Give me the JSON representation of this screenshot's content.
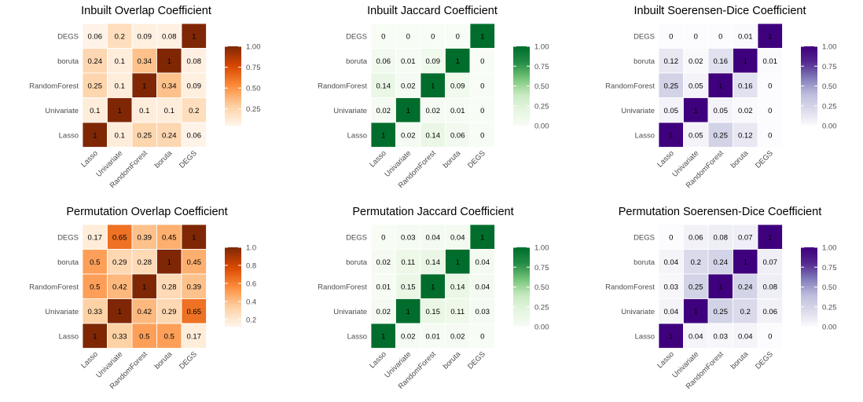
{
  "chart_data": [
    {
      "type": "heatmap",
      "title": "Inbuilt Overlap Coefficient",
      "rows": [
        "DEGS",
        "boruta",
        "RandomForest",
        "Univariate",
        "Lasso"
      ],
      "cols": [
        "Lasso",
        "Univariate",
        "RandomForest",
        "boruta",
        "DEGS"
      ],
      "values": [
        [
          0.06,
          0.2,
          0.09,
          0.08,
          1
        ],
        [
          0.24,
          0.1,
          0.34,
          1,
          0.08
        ],
        [
          0.25,
          0.1,
          1,
          0.34,
          0.09
        ],
        [
          0.1,
          1,
          0.1,
          0.1,
          0.2
        ],
        [
          1,
          0.1,
          0.25,
          0.24,
          0.06
        ]
      ],
      "labels": [
        [
          "0.06",
          "0.2",
          "0.09",
          "0.08",
          "1"
        ],
        [
          "0.24",
          "0.1",
          "0.34",
          "1",
          "0.08"
        ],
        [
          "0.25",
          "0.1",
          "1",
          "0.34",
          "0.09"
        ],
        [
          "0.1",
          "1",
          "0.1",
          "0.1",
          "0.2"
        ],
        [
          "1",
          "0.1",
          "0.25",
          "0.24",
          "0.06"
        ]
      ],
      "colors": [
        "#fff5eb",
        "#fdd0a2",
        "#fd8d3c",
        "#d94801",
        "#7f2704"
      ],
      "scale": [
        0.05,
        1
      ],
      "legend_ticks": [
        "1.00",
        "0.75",
        "0.50",
        "0.25"
      ],
      "legend_tick_values": [
        1,
        0.75,
        0.5,
        0.25
      ]
    },
    {
      "type": "heatmap",
      "title": "Inbuilt Jaccard Coefficient",
      "rows": [
        "DEGS",
        "boruta",
        "RandomForest",
        "Univariate",
        "Lasso"
      ],
      "cols": [
        "Lasso",
        "Univariate",
        "RandomForest",
        "boruta",
        "DEGS"
      ],
      "values": [
        [
          0,
          0,
          0,
          0,
          1
        ],
        [
          0.06,
          0.01,
          0.09,
          1,
          0
        ],
        [
          0.14,
          0.02,
          1,
          0.09,
          0
        ],
        [
          0.02,
          1,
          0.02,
          0.01,
          0
        ],
        [
          1,
          0.02,
          0.14,
          0.06,
          0
        ]
      ],
      "labels": [
        [
          "0",
          "0",
          "0",
          "0",
          "1"
        ],
        [
          "0.06",
          "0.01",
          "0.09",
          "1",
          "0"
        ],
        [
          "0.14",
          "0.02",
          "1",
          "0.09",
          "0"
        ],
        [
          "0.02",
          "1",
          "0.02",
          "0.01",
          "0"
        ],
        [
          "1",
          "0.02",
          "0.14",
          "0.06",
          "0"
        ]
      ],
      "colors": [
        "#f7fcf5",
        "#e5f5e0",
        "#c7e9c0",
        "#74c476",
        "#238b45",
        "#006d2c"
      ],
      "scale": [
        0,
        1
      ],
      "legend_ticks": [
        "1.00",
        "0.75",
        "0.50",
        "0.25",
        "0.00"
      ],
      "legend_tick_values": [
        1,
        0.75,
        0.5,
        0.25,
        0
      ]
    },
    {
      "type": "heatmap",
      "title": "Inbuilt Soerensen-Dice Coefficient",
      "rows": [
        "DEGS",
        "boruta",
        "RandomForest",
        "Univariate",
        "Lasso"
      ],
      "cols": [
        "Lasso",
        "Univariate",
        "RandomForest",
        "boruta",
        "DEGS"
      ],
      "values": [
        [
          0,
          0,
          0,
          0.01,
          1
        ],
        [
          0.12,
          0.02,
          0.16,
          1,
          0.01
        ],
        [
          0.25,
          0.05,
          1,
          0.16,
          0
        ],
        [
          0.05,
          1,
          0.05,
          0.02,
          0
        ],
        [
          1,
          0.05,
          0.25,
          0.12,
          0
        ]
      ],
      "labels": [
        [
          "0",
          "0",
          "0",
          "0.01",
          "1"
        ],
        [
          "0.12",
          "0.02",
          "0.16",
          "1",
          "0.01"
        ],
        [
          "0.25",
          "0.05",
          "1",
          "0.16",
          "0"
        ],
        [
          "0.05",
          "1",
          "0.05",
          "0.02",
          "0"
        ],
        [
          "1",
          "0.05",
          "0.25",
          "0.12",
          "0"
        ]
      ],
      "colors": [
        "#fcfbfd",
        "#dadaeb",
        "#bcbddc",
        "#807dba",
        "#54278f",
        "#3f007d"
      ],
      "scale": [
        0,
        1
      ],
      "legend_ticks": [
        "1.00",
        "0.75",
        "0.50",
        "0.25",
        "0.00"
      ],
      "legend_tick_values": [
        1,
        0.75,
        0.5,
        0.25,
        0
      ]
    },
    {
      "type": "heatmap",
      "title": "Permutation Overlap Coefficient",
      "rows": [
        "DEGS",
        "boruta",
        "RandomForest",
        "Univariate",
        "Lasso"
      ],
      "cols": [
        "Lasso",
        "Univariate",
        "RandomForest",
        "boruta",
        "DEGS"
      ],
      "values": [
        [
          0.17,
          0.65,
          0.39,
          0.45,
          1
        ],
        [
          0.5,
          0.29,
          0.28,
          1,
          0.45
        ],
        [
          0.5,
          0.42,
          1,
          0.28,
          0.39
        ],
        [
          0.33,
          1,
          0.42,
          0.29,
          0.65
        ],
        [
          1,
          0.33,
          0.5,
          0.5,
          0.17
        ]
      ],
      "labels": [
        [
          "0.17",
          "0.65",
          "0.39",
          "0.45",
          "1"
        ],
        [
          "0.5",
          "0.29",
          "0.28",
          "1",
          "0.45"
        ],
        [
          "0.5",
          "0.42",
          "1",
          "0.28",
          "0.39"
        ],
        [
          "0.33",
          "1",
          "0.42",
          "0.29",
          "0.65"
        ],
        [
          "1",
          "0.33",
          "0.5",
          "0.5",
          "0.17"
        ]
      ],
      "colors": [
        "#fff5eb",
        "#fdd0a2",
        "#fd8d3c",
        "#d94801",
        "#7f2704"
      ],
      "scale": [
        0.12,
        1
      ],
      "legend_ticks": [
        "1.0",
        "0.8",
        "0.6",
        "0.4",
        "0.2"
      ],
      "legend_tick_values": [
        1,
        0.8,
        0.6,
        0.4,
        0.2
      ]
    },
    {
      "type": "heatmap",
      "title": "Permutation Jaccard Coefficient",
      "rows": [
        "DEGS",
        "boruta",
        "RandomForest",
        "Univariate",
        "Lasso"
      ],
      "cols": [
        "Lasso",
        "Univariate",
        "RandomForest",
        "boruta",
        "DEGS"
      ],
      "values": [
        [
          0,
          0.03,
          0.04,
          0.04,
          1
        ],
        [
          0.02,
          0.11,
          0.14,
          1,
          0.04
        ],
        [
          0.01,
          0.15,
          1,
          0.14,
          0.04
        ],
        [
          0.02,
          1,
          0.15,
          0.11,
          0.03
        ],
        [
          1,
          0.02,
          0.01,
          0.02,
          0
        ]
      ],
      "labels": [
        [
          "0",
          "0.03",
          "0.04",
          "0.04",
          "1"
        ],
        [
          "0.02",
          "0.11",
          "0.14",
          "1",
          "0.04"
        ],
        [
          "0.01",
          "0.15",
          "1",
          "0.14",
          "0.04"
        ],
        [
          "0.02",
          "1",
          "0.15",
          "0.11",
          "0.03"
        ],
        [
          "1",
          "0.02",
          "0.01",
          "0.02",
          "0"
        ]
      ],
      "colors": [
        "#f7fcf5",
        "#e5f5e0",
        "#c7e9c0",
        "#74c476",
        "#238b45",
        "#006d2c"
      ],
      "scale": [
        0,
        1
      ],
      "legend_ticks": [
        "1.00",
        "0.75",
        "0.50",
        "0.25",
        "0.00"
      ],
      "legend_tick_values": [
        1,
        0.75,
        0.5,
        0.25,
        0
      ]
    },
    {
      "type": "heatmap",
      "title": "Permutation Soerensen-Dice Coefficient",
      "rows": [
        "DEGS",
        "boruta",
        "RandomForest",
        "Univariate",
        "Lasso"
      ],
      "cols": [
        "Lasso",
        "Univariate",
        "RandomForest",
        "boruta",
        "DEGS"
      ],
      "values": [
        [
          0,
          0.06,
          0.08,
          0.07,
          1
        ],
        [
          0.04,
          0.2,
          0.24,
          1,
          0.07
        ],
        [
          0.03,
          0.25,
          1,
          0.24,
          0.08
        ],
        [
          0.04,
          1,
          0.25,
          0.2,
          0.06
        ],
        [
          1,
          0.04,
          0.03,
          0.04,
          0
        ]
      ],
      "labels": [
        [
          "0",
          "0.06",
          "0.08",
          "0.07",
          "1"
        ],
        [
          "0.04",
          "0.2",
          "0.24",
          "1",
          "0.07"
        ],
        [
          "0.03",
          "0.25",
          "1",
          "0.24",
          "0.08"
        ],
        [
          "0.04",
          "1",
          "0.25",
          "0.2",
          "0.06"
        ],
        [
          "1",
          "0.04",
          "0.03",
          "0.04",
          "0"
        ]
      ],
      "colors": [
        "#fcfbfd",
        "#dadaeb",
        "#bcbddc",
        "#807dba",
        "#54278f",
        "#3f007d"
      ],
      "scale": [
        0,
        1
      ],
      "legend_ticks": [
        "1.00",
        "0.75",
        "0.50",
        "0.25",
        "0.00"
      ],
      "legend_tick_values": [
        1,
        0.75,
        0.5,
        0.25,
        0
      ]
    }
  ]
}
